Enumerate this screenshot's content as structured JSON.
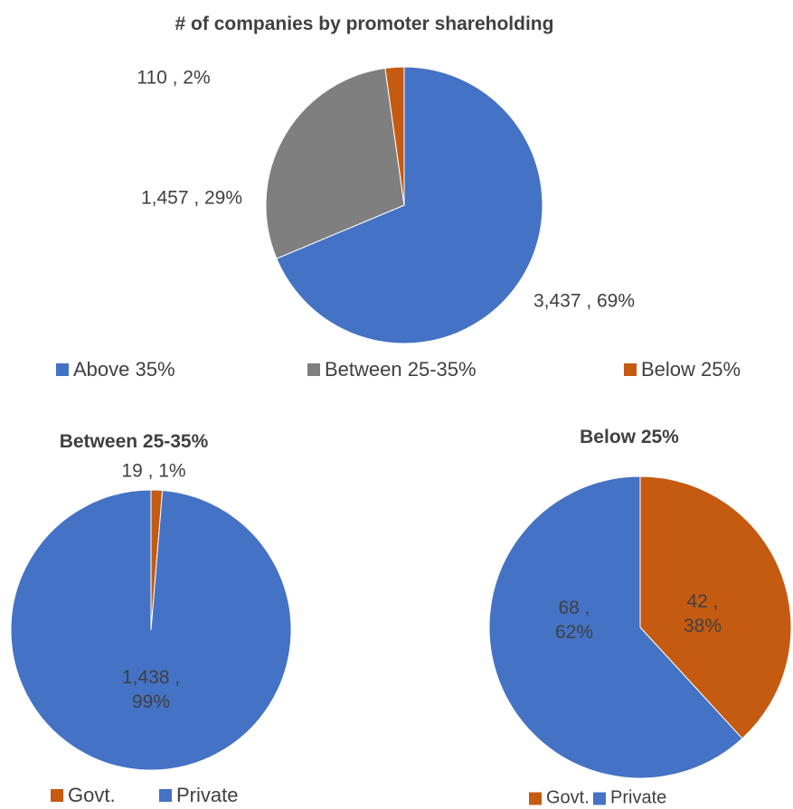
{
  "chart_data": [
    {
      "type": "pie",
      "title": "# of companies by promoter shareholding",
      "categories": [
        "Above 35%",
        "Between 25-35%",
        "Below 25%"
      ],
      "values": [
        3437,
        1457,
        110
      ],
      "value_labels": [
        "3,437 , 69%",
        "1,457 , 29%",
        "110 , 2%"
      ],
      "colors": [
        "#4472c4",
        "#7f7f7f",
        "#c55a11"
      ],
      "legend": "bottom"
    },
    {
      "type": "pie",
      "title": "Between 25-35%",
      "categories": [
        "Govt.",
        "Private"
      ],
      "values": [
        19,
        1438
      ],
      "value_labels": [
        "19 , 1%",
        "1,438 , 99%"
      ],
      "colors": [
        "#c55a11",
        "#4472c4"
      ],
      "legend": "bottom"
    },
    {
      "type": "pie",
      "title": "Below 25%",
      "categories": [
        "Govt.",
        "Private"
      ],
      "values": [
        42,
        68
      ],
      "value_labels": [
        "42 , 38%",
        "68 , 62%"
      ],
      "colors": [
        "#c55a11",
        "#4472c4"
      ],
      "legend": "bottom"
    }
  ]
}
